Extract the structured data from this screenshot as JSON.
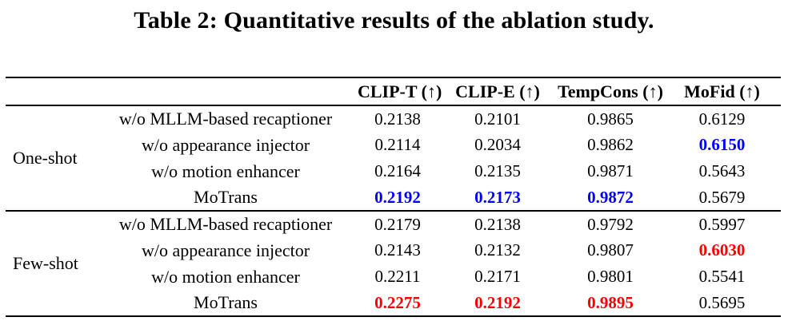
{
  "title": "Table 2: Quantitative results of the ablation study.",
  "colors": {
    "highlight_blue": "#0000ff",
    "highlight_red": "#ff0000",
    "text": "#000000",
    "background": "#ffffff"
  },
  "table": {
    "columns": [
      "CLIP-T (↑)",
      "CLIP-E (↑)",
      "TempCons (↑)",
      "MoFid (↑)"
    ],
    "groups": [
      {
        "name": "One-shot",
        "rows": [
          {
            "label": "w/o MLLM-based recaptioner",
            "values": [
              "0.2138",
              "0.2101",
              "0.9865",
              "0.6129"
            ]
          },
          {
            "label": "w/o appearance injector",
            "values": [
              "0.2114",
              "0.2034",
              "0.9862",
              "0.6150"
            ]
          },
          {
            "label": "w/o motion enhancer",
            "values": [
              "0.2164",
              "0.2135",
              "0.9871",
              "0.5643"
            ]
          },
          {
            "label": "MoTrans",
            "values": [
              "0.2192",
              "0.2173",
              "0.9872",
              "0.5679"
            ]
          }
        ]
      },
      {
        "name": "Few-shot",
        "rows": [
          {
            "label": "w/o MLLM-based recaptioner",
            "values": [
              "0.2179",
              "0.2138",
              "0.9792",
              "0.5997"
            ]
          },
          {
            "label": "w/o appearance injector",
            "values": [
              "0.2143",
              "0.2132",
              "0.9807",
              "0.6030"
            ]
          },
          {
            "label": "w/o motion enhancer",
            "values": [
              "0.2211",
              "0.2171",
              "0.9801",
              "0.5541"
            ]
          },
          {
            "label": "MoTrans",
            "values": [
              "0.2275",
              "0.2192",
              "0.9895",
              "0.5695"
            ]
          }
        ]
      }
    ]
  }
}
